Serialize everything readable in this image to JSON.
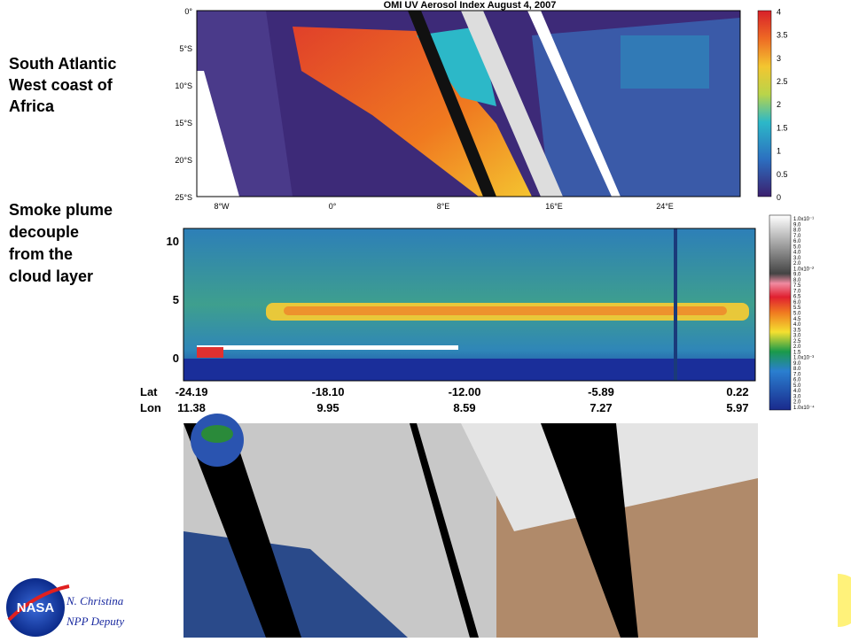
{
  "left_notes": [
    "South Atlantic",
    "West coast of",
    "Africa"
  ],
  "left_notes_2": [
    "Smoke plume",
    "decouple",
    "from the",
    "cloud layer"
  ],
  "map_panel": {
    "title": "OMI UV Aerosol Index August 4, 2007",
    "lat_ticks": [
      "0°",
      "5°S",
      "10°S",
      "15°S",
      "20°S",
      "25°S"
    ],
    "lon_ticks": [
      "8°W",
      "0°",
      "8°E",
      "16°E",
      "24°E"
    ],
    "colorbar_ticks": [
      "0",
      "0.5",
      "1",
      "1.5",
      "2",
      "2.5",
      "3",
      "3.5",
      "4"
    ]
  },
  "lidar_panel": {
    "y_ticks": [
      "0",
      "5",
      "10"
    ],
    "lat_label": "Lat",
    "lon_label": "Lon",
    "lat_values": [
      "-24.19",
      "-18.10",
      "-12.00",
      "-5.89",
      "0.22"
    ],
    "lon_values": [
      "11.38",
      "9.95",
      "8.59",
      "7.27",
      "5.97"
    ],
    "colorbar_labels": [
      "1.0x10⁻¹",
      "9.0",
      "8.0",
      "7.0",
      "6.0",
      "5.0",
      "4.0",
      "3.0",
      "2.0",
      "1.0x10⁻²",
      "9.0",
      "8.0",
      "7.5",
      "7.0",
      "6.5",
      "6.0",
      "5.5",
      "5.0",
      "4.5",
      "4.0",
      "3.5",
      "3.0",
      "2.5",
      "2.0",
      "1.5",
      "1.0x10⁻³",
      "9.0",
      "8.0",
      "7.0",
      "6.0",
      "5.0",
      "4.0",
      "3.0",
      "2.0",
      "1.0x10⁻⁴"
    ]
  },
  "footer": {
    "logo": "NASA",
    "author": "N. Christina",
    "role": "NPP Deputy"
  }
}
